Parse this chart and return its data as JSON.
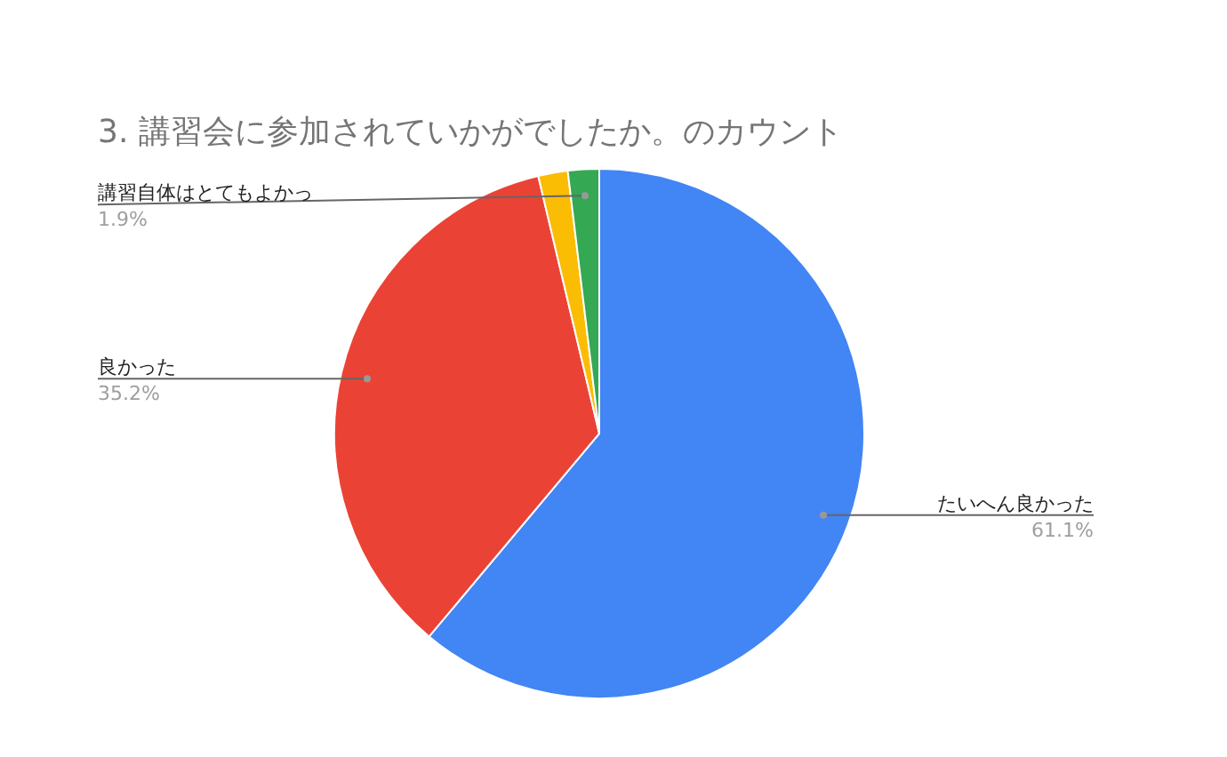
{
  "chart_data": {
    "type": "pie",
    "title": "3.  講習会に参加されていかがでしたか。のカウント",
    "categories": [
      "たいへん良かった",
      "良かった",
      null,
      "講習自体はとてもよかっ"
    ],
    "values": [
      61.1,
      35.2,
      1.8,
      1.9
    ],
    "colors": [
      "#4285f4",
      "#ea4335",
      "#fbbc04",
      "#34a853"
    ],
    "value_labels": [
      "61.1%",
      "35.2%",
      null,
      "1.9%"
    ]
  }
}
